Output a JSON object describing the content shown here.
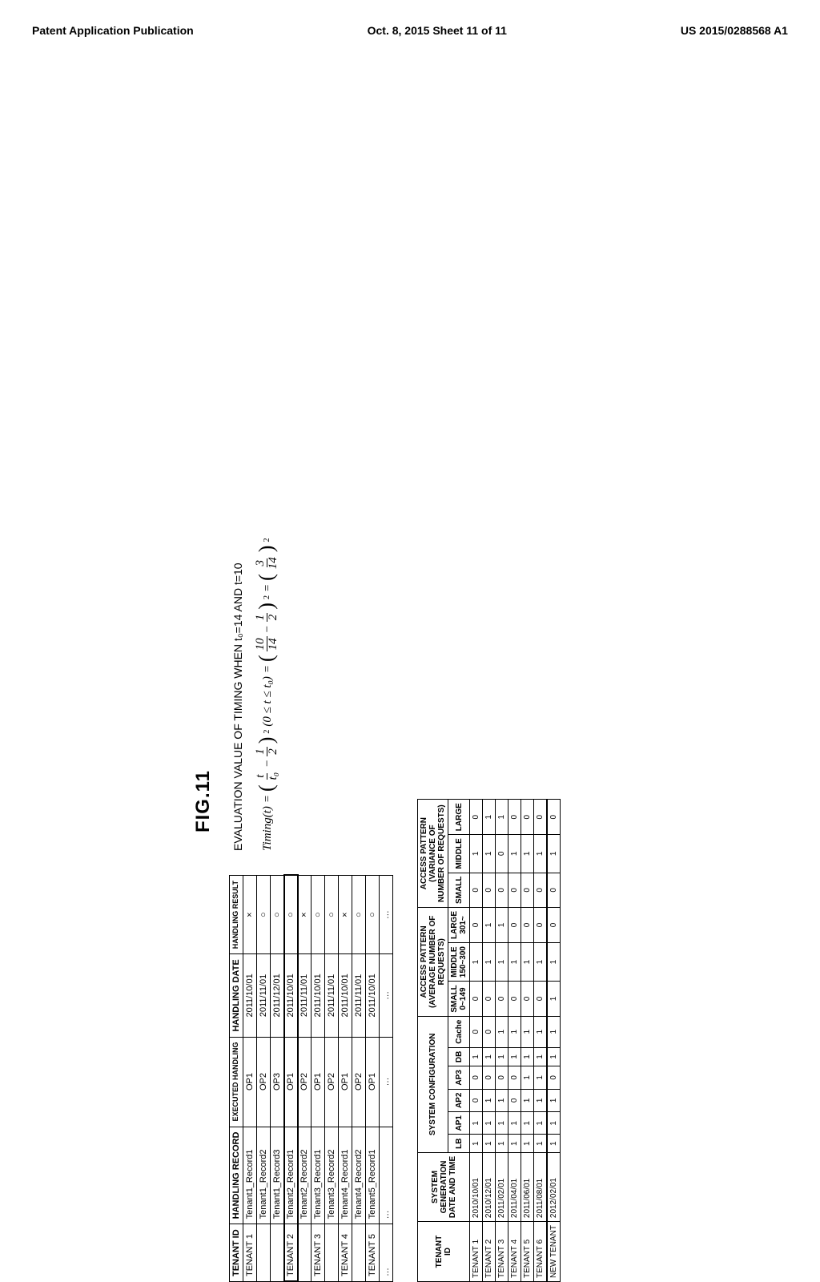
{
  "header": {
    "left": "Patent Application Publication",
    "center": "Oct. 8, 2015  Sheet 11 of 11",
    "right": "US 2015/0288568 A1"
  },
  "figure_label": "FIG.11",
  "evaluation": {
    "title": "EVALUATION VALUE OF TIMING WHEN t₀=14 AND t=10",
    "formula_lhs": "Timing(t)",
    "eq": "=",
    "frac1_num": "t",
    "frac1_den": "t₀",
    "minus_half_num": "1",
    "minus_half_den": "2",
    "range": "(0 ≤ t ≤ t₀)",
    "frac2a_num": "10",
    "frac2a_den": "14",
    "frac2b_num": "1",
    "frac2b_den": "2",
    "frac3_num": "3",
    "frac3_den": "14"
  },
  "handling_table": {
    "headers": [
      "TENANT ID",
      "HANDLING RECORD",
      "EXECUTED HANDLING",
      "HANDLING DATE",
      "HANDLING RESULT"
    ],
    "rows": [
      [
        "TENANT 1",
        "Tenant1_Record1",
        "OP1",
        "2011/10/01",
        "×"
      ],
      [
        "",
        "Tenant1_Record2",
        "OP2",
        "2011/11/01",
        "○"
      ],
      [
        "",
        "Tenant1_Record3",
        "OP3",
        "2011/12/01",
        "○"
      ],
      [
        "TENANT 2",
        "Tenant2_Record1",
        "OP1",
        "2011/10/01",
        "○"
      ],
      [
        "",
        "Tenant2_Record2",
        "OP2",
        "2011/11/01",
        "×"
      ],
      [
        "TENANT 3",
        "Tenant3_Record1",
        "OP1",
        "2011/10/01",
        "○"
      ],
      [
        "",
        "Tenant3_Record2",
        "OP2",
        "2011/11/01",
        "○"
      ],
      [
        "TENANT 4",
        "Tenant4_Record1",
        "OP1",
        "2011/10/01",
        "×"
      ],
      [
        "",
        "Tenant4_Record2",
        "OP2",
        "2011/11/01",
        "○"
      ],
      [
        "TENANT 5",
        "Tenant5_Record1",
        "OP1",
        "2011/10/01",
        "○"
      ],
      [
        "…",
        "…",
        "…",
        "…",
        "…"
      ]
    ],
    "highlight_row_index": 3
  },
  "tenant_table": {
    "top_headers": {
      "tenant_id": "TENANT\nID",
      "gen_time": "SYSTEM\nGENERATION\nDATE AND TIME",
      "sys_conf": "SYSTEM CONFIGURATION",
      "access_avg": "ACCESS PATTERN\n(AVERAGE NUMBER OF\nREQUESTS)",
      "access_var": "ACCESS PATTERN\n(VARIANCE OF\nNUMBER OF REQUESTS)"
    },
    "sys_cols": [
      "LB",
      "AP1",
      "AP2",
      "AP3",
      "DB",
      "Cache"
    ],
    "avg_cols": [
      "SMALL\n0~149",
      "MIDDLE\n150~300",
      "LARGE\n301~"
    ],
    "var_cols": [
      "SMALL",
      "MIDDLE",
      "LARGE"
    ],
    "rows": [
      [
        "TENANT 1",
        "2010/10/01",
        "1",
        "1",
        "0",
        "0",
        "1",
        "0",
        "0",
        "1",
        "0",
        "0",
        "1",
        "0"
      ],
      [
        "TENANT 2",
        "2010/12/01",
        "1",
        "1",
        "1",
        "0",
        "1",
        "0",
        "0",
        "1",
        "1",
        "0",
        "1",
        "1"
      ],
      [
        "TENANT 3",
        "2011/02/01",
        "1",
        "1",
        "1",
        "0",
        "1",
        "1",
        "0",
        "1",
        "1",
        "0",
        "0",
        "1"
      ],
      [
        "TENANT 4",
        "2011/04/01",
        "1",
        "1",
        "0",
        "0",
        "1",
        "1",
        "0",
        "1",
        "0",
        "0",
        "1",
        "0"
      ],
      [
        "TENANT 5",
        "2011/06/01",
        "1",
        "1",
        "1",
        "1",
        "1",
        "1",
        "0",
        "1",
        "0",
        "0",
        "1",
        "0"
      ],
      [
        "TENANT 6",
        "2011/08/01",
        "1",
        "1",
        "1",
        "1",
        "1",
        "1",
        "0",
        "1",
        "0",
        "0",
        "1",
        "0"
      ],
      [
        "NEW TENANT",
        "2012/02/01",
        "1",
        "1",
        "1",
        "0",
        "1",
        "1",
        "1",
        "1",
        "0",
        "0",
        "1",
        "0"
      ]
    ],
    "thick_row_index": 6
  }
}
